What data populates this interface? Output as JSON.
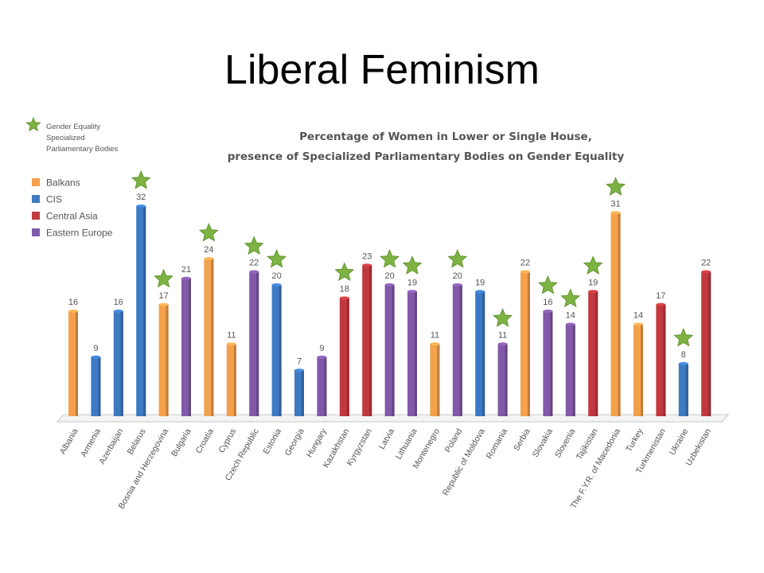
{
  "slide": {
    "title": "Liberal Feminism"
  },
  "colors": {
    "Balkans": "#f5a04a",
    "CIS": "#3d7ac4",
    "Central Asia": "#c0393e",
    "Eastern Europe": "#8259a8",
    "star": "#7cb342"
  },
  "chart_data": {
    "type": "bar",
    "title": "Percentage of Women in Lower or Single House,",
    "subtitle": "presence of Specialized Parliamentary Bodies on Gender Equality",
    "legend": {
      "placement": "top-left",
      "star_label_lines": [
        "Gender Equality",
        "Specialized",
        "Parliamentary Bodies"
      ],
      "groups": [
        "Balkans",
        "CIS",
        "Central Asia",
        "Eastern Europe"
      ]
    },
    "ylim": [
      0,
      34
    ],
    "grid": false,
    "categories": [
      "Albania",
      "Armenia",
      "Azerbaijan",
      "Belarus",
      "Bosnia and Herzegovina",
      "Bulgaria",
      "Croatia",
      "Cyprus",
      "Czech Republic",
      "Estonia",
      "Georgia",
      "Hungary",
      "Kazakhstan",
      "Kyrgyzstan",
      "Latvia",
      "Lithuania",
      "Montenegro",
      "Poland",
      "Republic of Moldova",
      "Romania",
      "Serbia",
      "Slovakia",
      "Slovenia",
      "Tajikistan",
      "The F.Y.R. of Macedonia",
      "Turkey",
      "Turkmenistan",
      "Ukraine",
      "Uzbekistan"
    ],
    "values": [
      16,
      9,
      16,
      32,
      17,
      21,
      24,
      11,
      22,
      20,
      7,
      9,
      18,
      23,
      20,
      19,
      11,
      20,
      19,
      11,
      22,
      16,
      14,
      19,
      31,
      14,
      17,
      8,
      22
    ],
    "groups": [
      "Balkans",
      "CIS",
      "CIS",
      "CIS",
      "Balkans",
      "Eastern Europe",
      "Balkans",
      "Balkans",
      "Eastern Europe",
      "CIS",
      "CIS",
      "Eastern Europe",
      "Central Asia",
      "Central Asia",
      "Eastern Europe",
      "Eastern Europe",
      "Balkans",
      "Eastern Europe",
      "CIS",
      "Eastern Europe",
      "Balkans",
      "Eastern Europe",
      "Eastern Europe",
      "Central Asia",
      "Balkans",
      "Balkans",
      "Central Asia",
      "CIS",
      "Central Asia"
    ],
    "has_specialized_body": [
      false,
      false,
      false,
      true,
      true,
      false,
      true,
      false,
      true,
      true,
      false,
      false,
      true,
      false,
      true,
      true,
      false,
      true,
      false,
      true,
      false,
      true,
      true,
      true,
      true,
      false,
      false,
      true,
      false
    ]
  }
}
